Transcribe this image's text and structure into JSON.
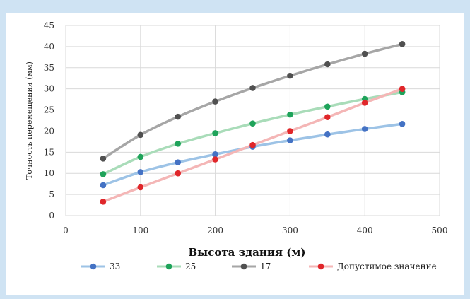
{
  "chart_data": {
    "type": "line",
    "title": "",
    "xlabel": "Высота здания (м)",
    "ylabel": "Точность перемещения (мм)",
    "xlim": [
      0,
      500
    ],
    "ylim": [
      0,
      45
    ],
    "x_ticks": [
      0,
      100,
      200,
      300,
      400,
      500
    ],
    "y_ticks": [
      0,
      5,
      10,
      15,
      20,
      25,
      30,
      35,
      40,
      45
    ],
    "grid": true,
    "legend_position": "bottom",
    "x": [
      50,
      100,
      150,
      200,
      250,
      300,
      350,
      400,
      450
    ],
    "series": [
      {
        "name": "33",
        "color": "#4472c4",
        "line_color": "#9dc3e6",
        "values": [
          7.2,
          10.3,
          12.6,
          14.5,
          16.3,
          17.8,
          19.2,
          20.5,
          21.7
        ]
      },
      {
        "name": "25",
        "color": "#1ea35a",
        "line_color": "#a9dcb9",
        "values": [
          9.8,
          13.9,
          17.0,
          19.5,
          21.8,
          23.9,
          25.8,
          27.6,
          29.2
        ]
      },
      {
        "name": "17",
        "color": "#505050",
        "line_color": "#a6a6a6",
        "values": [
          13.5,
          19.1,
          23.4,
          27.0,
          30.2,
          33.1,
          35.8,
          38.3,
          40.6
        ]
      },
      {
        "name": "Допустимое значение",
        "color": "#e0262a",
        "line_color": "#f4b6b6",
        "values": [
          3.3,
          6.7,
          10.0,
          13.3,
          16.7,
          20.0,
          23.3,
          26.7,
          30.0
        ]
      }
    ]
  }
}
